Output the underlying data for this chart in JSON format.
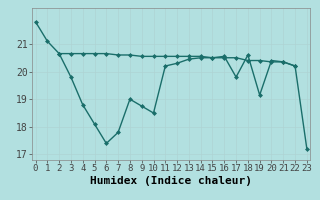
{
  "xlabel": "Humidex (Indice chaleur)",
  "ylabel": "",
  "background_color": "#b2e0e0",
  "grid_color": "#c0dede",
  "line_color": "#1a6e6a",
  "x_values": [
    0,
    1,
    2,
    3,
    4,
    5,
    6,
    7,
    8,
    9,
    10,
    11,
    12,
    13,
    14,
    15,
    16,
    17,
    18,
    19,
    20,
    21,
    22,
    23
  ],
  "line1": [
    21.8,
    21.1,
    20.65,
    20.65,
    20.65,
    20.65,
    20.65,
    20.6,
    20.6,
    20.55,
    20.55,
    20.55,
    20.55,
    20.55,
    20.55,
    20.5,
    20.5,
    20.5,
    20.4,
    20.4,
    20.35,
    20.35,
    20.2,
    null
  ],
  "line2": [
    null,
    null,
    20.65,
    19.8,
    18.8,
    18.1,
    17.4,
    17.8,
    19.0,
    18.75,
    18.5,
    20.2,
    20.3,
    20.45,
    20.5,
    20.5,
    20.55,
    19.8,
    20.6,
    19.15,
    20.4,
    20.35,
    20.2,
    17.2
  ],
  "ylim": [
    16.8,
    22.3
  ],
  "xlim": [
    -0.3,
    23.3
  ],
  "yticks": [
    17,
    18,
    19,
    20,
    21
  ],
  "xticks": [
    0,
    1,
    2,
    3,
    4,
    5,
    6,
    7,
    8,
    9,
    10,
    11,
    12,
    13,
    14,
    15,
    16,
    17,
    18,
    19,
    20,
    21,
    22,
    23
  ],
  "font_size": 6.5,
  "marker": "D",
  "marker_size": 2.0,
  "line_width": 1.0
}
